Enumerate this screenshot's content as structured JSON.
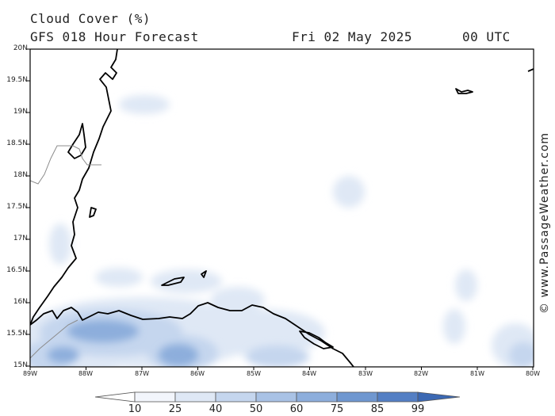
{
  "header": {
    "title": "Cloud Cover (%)",
    "subtitle": "GFS 018 Hour Forecast",
    "date": "Fri 02 May 2025",
    "time": "00 UTC"
  },
  "watermark": "© www.PassageWeather.com",
  "axes": {
    "lat_labels": [
      "20N",
      "19.5N",
      "19N",
      "18.5N",
      "18N",
      "17.5N",
      "17N",
      "16.5N",
      "16N",
      "15.5N",
      "15N"
    ],
    "lon_labels": [
      "89W",
      "88W",
      "87W",
      "86W",
      "85W",
      "84W",
      "83W",
      "82W",
      "81W",
      "80W"
    ]
  },
  "colorbar": {
    "ticks": [
      "10",
      "25",
      "40",
      "50",
      "60",
      "75",
      "85",
      "99"
    ],
    "colors": [
      "#ffffff",
      "#f2f5fb",
      "#dfe8f5",
      "#c5d6ee",
      "#a9c2e5",
      "#8daedc",
      "#6f97d0",
      "#547fc4",
      "#3b68b3"
    ]
  },
  "colors": {
    "land_outline": "#000000",
    "border": "#8c8c8c",
    "cloud_light": "#dde7f5",
    "cloud_mid": "#a7c0e4",
    "cloud_dark": "#6f97d0"
  }
}
